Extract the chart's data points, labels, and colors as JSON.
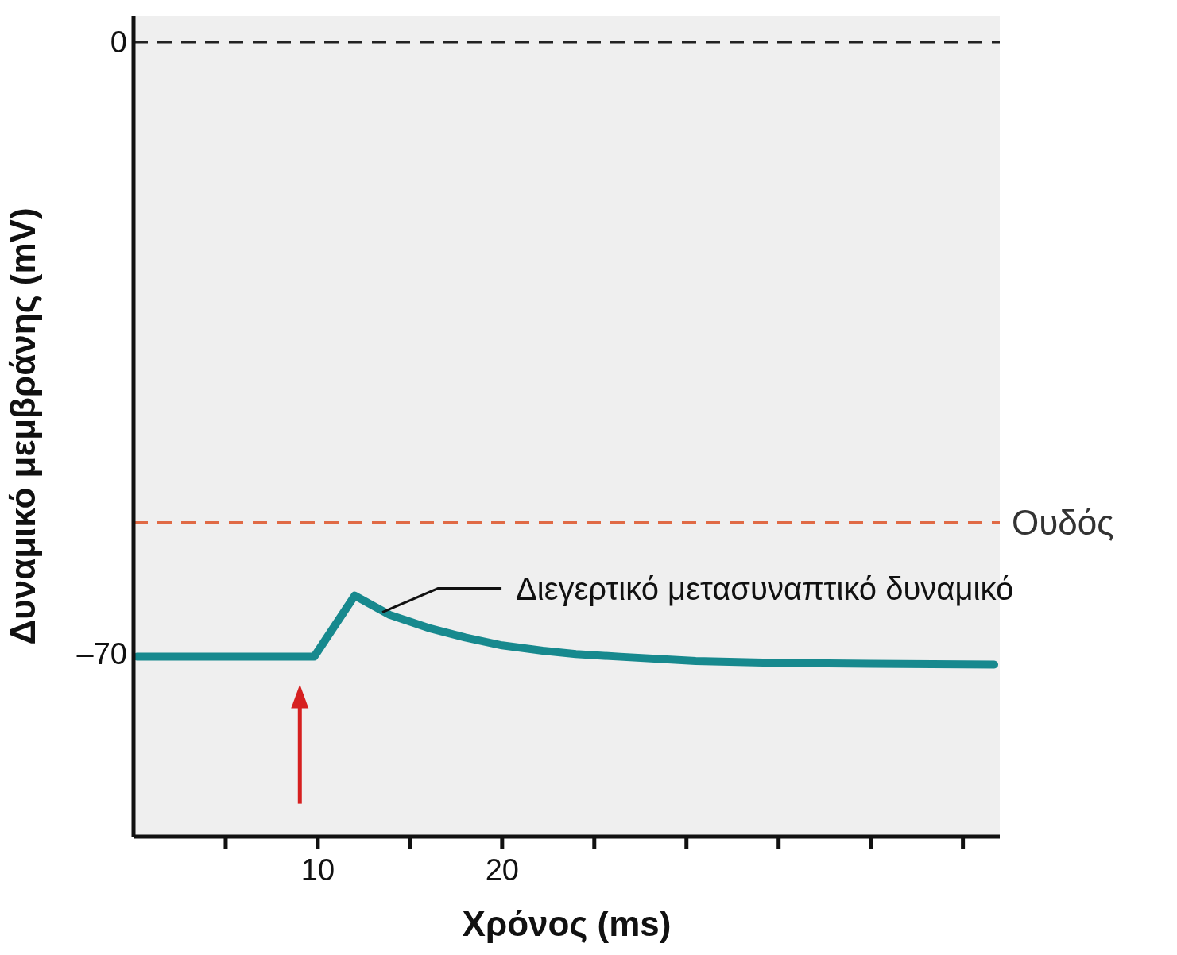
{
  "chart_data": {
    "type": "line",
    "xlabel": "Χρόνος (ms)",
    "ylabel": "Δυναμικό μεμβράνης (mV)",
    "xlim": [
      0,
      47
    ],
    "ylim": [
      -91,
      3
    ],
    "xticks": [
      {
        "value": 5,
        "label": null
      },
      10,
      {
        "value": 15,
        "label": null
      },
      20,
      {
        "value": 25,
        "label": null
      },
      {
        "value": 30,
        "label": null
      },
      {
        "value": 35,
        "label": null
      },
      {
        "value": 40,
        "label": null
      },
      {
        "value": 45,
        "label": null
      }
    ],
    "yticks": [
      {
        "value": -70,
        "label": "–70"
      },
      0
    ],
    "series": [
      {
        "color": "#17898e",
        "x": [
          0.2,
          9.8,
          12,
          13.9,
          16,
          18,
          20,
          22.2,
          24,
          26.4,
          30.5,
          34.6,
          40,
          46.7
        ],
        "values": [
          -70.4,
          -70.4,
          -63.4,
          -65.6,
          -67.1,
          -68.2,
          -69.1,
          -69.7,
          -70.1,
          -70.4,
          -70.9,
          -71.1,
          -71.2,
          -71.3
        ]
      }
    ],
    "ref_lines": [
      {
        "axis": "y",
        "value": 0,
        "color": "#222222",
        "line_style": "dashed"
      },
      {
        "axis": "y",
        "value": -55,
        "label": "Ουδός",
        "color": "#e06a45",
        "line_style": "dashed"
      }
    ],
    "annotations": [
      {
        "text": "Διεγερτικό μετασυναπτικό δυναμικό",
        "x": 13.5,
        "y": -65.3
      }
    ]
  }
}
